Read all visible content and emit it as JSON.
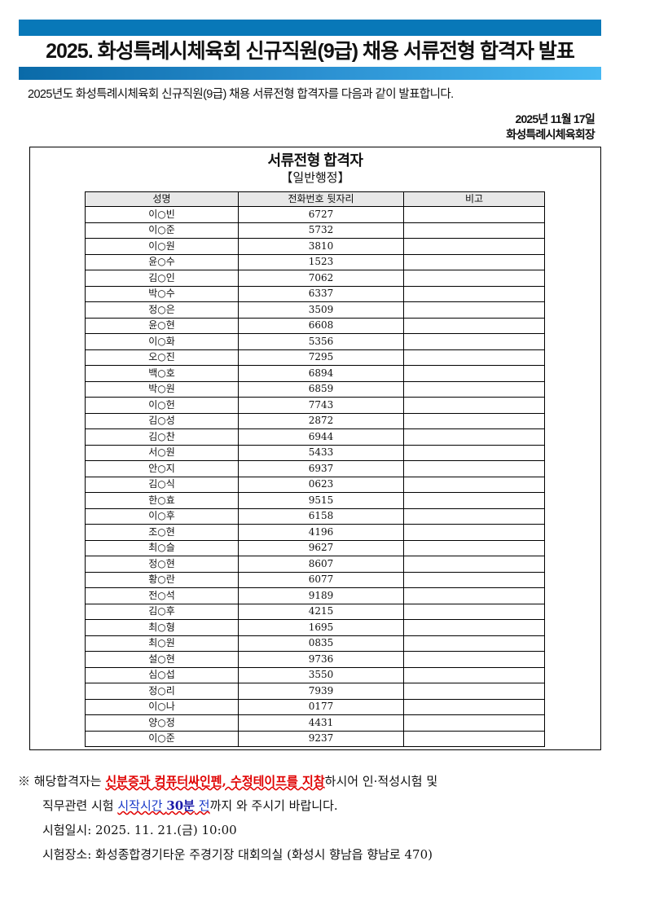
{
  "header": {
    "title": "2025. 화성특례시체육회 신규직원(9급) 채용 서류전형 합격자 발표",
    "intro": "2025년도 화성특례시체육회 신규직원(9급) 채용 서류전형 합격자를 다음과 같이 발표합니다.",
    "date": "2025년 11월 17일",
    "issuer": "화성특례시체육회장",
    "accent_color": "#0878b8"
  },
  "box": {
    "title": "서류전형 합격자",
    "subtitle": "【일반행정】"
  },
  "table": {
    "columns": [
      "성명",
      "전화번호 뒷자리",
      "비고"
    ],
    "rows": [
      [
        "이○빈",
        "6727",
        ""
      ],
      [
        "이○준",
        "5732",
        ""
      ],
      [
        "이○원",
        "3810",
        ""
      ],
      [
        "윤○수",
        "1523",
        ""
      ],
      [
        "김○인",
        "7062",
        ""
      ],
      [
        "박○수",
        "6337",
        ""
      ],
      [
        "정○은",
        "3509",
        ""
      ],
      [
        "윤○현",
        "6608",
        ""
      ],
      [
        "이○화",
        "5356",
        ""
      ],
      [
        "오○진",
        "7295",
        ""
      ],
      [
        "백○호",
        "6894",
        ""
      ],
      [
        "박○원",
        "6859",
        ""
      ],
      [
        "이○헌",
        "7743",
        ""
      ],
      [
        "김○성",
        "2872",
        ""
      ],
      [
        "김○찬",
        "6944",
        ""
      ],
      [
        "서○원",
        "5433",
        ""
      ],
      [
        "안○지",
        "6937",
        ""
      ],
      [
        "김○식",
        "0623",
        ""
      ],
      [
        "한○효",
        "9515",
        ""
      ],
      [
        "이○후",
        "6158",
        ""
      ],
      [
        "조○현",
        "4196",
        ""
      ],
      [
        "최○슬",
        "9627",
        ""
      ],
      [
        "정○현",
        "8607",
        ""
      ],
      [
        "황○란",
        "6077",
        ""
      ],
      [
        "전○석",
        "9189",
        ""
      ],
      [
        "김○후",
        "4215",
        ""
      ],
      [
        "최○형",
        "1695",
        ""
      ],
      [
        "최○원",
        "0835",
        ""
      ],
      [
        "설○현",
        "9736",
        ""
      ],
      [
        "심○섭",
        "3550",
        ""
      ],
      [
        "정○리",
        "7939",
        ""
      ],
      [
        "이○나",
        "0177",
        ""
      ],
      [
        "양○정",
        "4431",
        ""
      ],
      [
        "이○준",
        "9237",
        ""
      ]
    ]
  },
  "notes": {
    "mark": "※",
    "l1a": " 해당합격자는 ",
    "l1b": "신분증과 컴퓨터싸인펜, 수정테이프를 지참",
    "l1c": "하시어 인·적성시험 및",
    "l2a": "직무관련 시험 ",
    "l2b": "시작시간 ",
    "l2c": "30분",
    "l2d": " 전",
    "l2e": "까지 와 주시기 바랍니다.",
    "date": "시험일시: 2025. 11. 21.(금) 10:00",
    "place": "시험장소: 화성종합경기타운 주경기장 대회의실 (화성시 향남읍 향남로 470)"
  }
}
